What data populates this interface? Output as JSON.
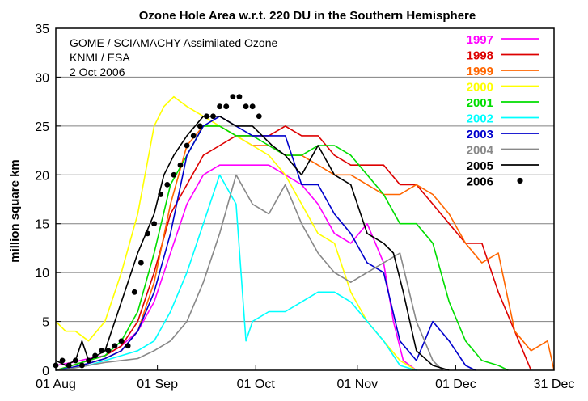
{
  "chart_data": {
    "type": "line",
    "title": "Ozone Hole Area w.r.t. 220 DU in the Southern Hemisphere",
    "xlabel": "",
    "ylabel": "million square km",
    "x_ticks": [
      "01 Aug",
      "01 Sep",
      "01 Oct",
      "01 Nov",
      "01 Dec",
      "31 Dec"
    ],
    "x_tick_days": [
      0,
      31,
      61,
      92,
      122,
      152
    ],
    "xlim": [
      0,
      152
    ],
    "ylim": [
      0,
      35
    ],
    "y_ticks": [
      0,
      5,
      10,
      15,
      20,
      25,
      30,
      35
    ],
    "grid": "horizontal",
    "annotations": [
      "GOME / SCIAMACHY Assimilated Ozone",
      "KNMI / ESA",
      "2 Oct 2006"
    ],
    "legend_position": "top-right",
    "series": [
      {
        "name": "1997",
        "color": "#ff00ff",
        "style": "line",
        "x": [
          0,
          5,
          10,
          15,
          20,
          25,
          30,
          35,
          40,
          45,
          50,
          55,
          60,
          65,
          70,
          75,
          80,
          85,
          90,
          95,
          100,
          103,
          106,
          110
        ],
        "y": [
          0.5,
          0.8,
          1.2,
          1.5,
          2.5,
          4,
          7,
          12,
          17,
          20,
          21,
          21,
          21,
          21,
          20,
          19,
          17,
          14,
          13,
          15,
          11,
          5,
          1,
          0
        ]
      },
      {
        "name": "1998",
        "color": "#dd0000",
        "style": "line",
        "x": [
          0,
          5,
          10,
          15,
          20,
          25,
          30,
          35,
          40,
          45,
          50,
          55,
          60,
          65,
          70,
          75,
          80,
          85,
          90,
          95,
          100,
          105,
          110,
          115,
          120,
          125,
          130,
          135,
          140,
          145
        ],
        "y": [
          0,
          0.5,
          1,
          1.5,
          2.5,
          5,
          10,
          16,
          19,
          22,
          23,
          24,
          24,
          24,
          25,
          24,
          24,
          22,
          21,
          21,
          21,
          19,
          19,
          17,
          15,
          13,
          13,
          8,
          4,
          0
        ]
      },
      {
        "name": "1999",
        "color": "#ff6600",
        "style": "line",
        "x": [
          0,
          5,
          10,
          15,
          20,
          25,
          30,
          35,
          40,
          45,
          50,
          55,
          60,
          65,
          70,
          75,
          80,
          85,
          90,
          95,
          100,
          105,
          110,
          115,
          120,
          125,
          130,
          135,
          140,
          145,
          150,
          152
        ],
        "y": [
          0,
          0.3,
          0.7,
          1.2,
          2,
          4,
          9,
          17,
          23,
          25,
          25,
          24,
          23,
          23,
          22,
          22,
          21,
          20,
          20,
          19,
          18,
          18,
          19,
          18,
          16,
          13,
          11,
          12,
          4,
          2,
          3,
          0
        ]
      },
      {
        "name": "2000",
        "color": "#ffff00",
        "style": "line",
        "x": [
          0,
          3,
          6,
          10,
          15,
          20,
          25,
          30,
          33,
          36,
          40,
          45,
          50,
          55,
          60,
          65,
          70,
          75,
          80,
          85,
          90,
          95,
          100,
          105,
          110
        ],
        "y": [
          5,
          4,
          4,
          3,
          5,
          10,
          16,
          25,
          27,
          28,
          27,
          26,
          25,
          24,
          23,
          22,
          20,
          17,
          14,
          13,
          8,
          5,
          3,
          1,
          0
        ]
      },
      {
        "name": "2001",
        "color": "#00dd00",
        "style": "line",
        "x": [
          0,
          5,
          10,
          15,
          20,
          25,
          30,
          35,
          40,
          45,
          50,
          55,
          60,
          65,
          70,
          75,
          80,
          85,
          90,
          95,
          100,
          105,
          110,
          115,
          120,
          125,
          130,
          135,
          138
        ],
        "y": [
          0,
          0.5,
          1,
          1.5,
          3,
          6,
          12,
          19,
          22,
          25,
          25,
          24,
          24,
          23,
          22,
          22,
          23,
          23,
          22,
          20,
          18,
          15,
          15,
          13,
          7,
          3,
          1,
          0.5,
          0
        ]
      },
      {
        "name": "2002",
        "color": "#00ffff",
        "style": "line",
        "x": [
          0,
          5,
          10,
          15,
          20,
          25,
          30,
          35,
          40,
          45,
          50,
          55,
          58,
          60,
          65,
          70,
          75,
          80,
          85,
          90,
          95,
          100,
          105,
          110
        ],
        "y": [
          0,
          0.3,
          0.5,
          1,
          1.5,
          2,
          3,
          6,
          10,
          15,
          20,
          17,
          3,
          5,
          6,
          6,
          7,
          8,
          8,
          7,
          5,
          3,
          0.5,
          0
        ]
      },
      {
        "name": "2003",
        "color": "#0000cc",
        "style": "line",
        "x": [
          0,
          5,
          10,
          15,
          20,
          25,
          30,
          35,
          40,
          45,
          50,
          55,
          60,
          65,
          70,
          75,
          80,
          85,
          90,
          95,
          100,
          105,
          110,
          115,
          120,
          125,
          128
        ],
        "y": [
          0,
          0.3,
          0.7,
          1.2,
          2,
          4,
          8,
          14,
          22,
          25,
          26,
          25,
          24,
          24,
          24,
          19,
          19,
          16,
          14,
          11,
          10,
          3,
          1,
          5,
          3,
          0.5,
          0
        ]
      },
      {
        "name": "2004",
        "color": "#888888",
        "style": "line",
        "x": [
          0,
          5,
          10,
          15,
          20,
          25,
          30,
          35,
          40,
          45,
          50,
          55,
          60,
          65,
          70,
          75,
          80,
          85,
          90,
          95,
          100,
          105,
          110,
          115,
          118
        ],
        "y": [
          0,
          0.2,
          0.5,
          0.8,
          1,
          1.2,
          2,
          3,
          5,
          9,
          14,
          20,
          17,
          16,
          19,
          15,
          12,
          10,
          9,
          10,
          11,
          12,
          5,
          1,
          0
        ]
      },
      {
        "name": "2005",
        "color": "#000000",
        "style": "line",
        "x": [
          0,
          3,
          6,
          8,
          10,
          15,
          20,
          25,
          30,
          33,
          36,
          40,
          45,
          50,
          55,
          60,
          63,
          66,
          70,
          75,
          80,
          85,
          90,
          95,
          100,
          103,
          106,
          110,
          115,
          120
        ],
        "y": [
          1,
          0.5,
          1,
          3,
          1,
          2,
          7,
          12,
          16,
          20,
          22,
          24,
          26,
          26,
          25,
          25,
          24,
          23,
          22,
          20,
          23,
          20,
          19,
          14,
          13,
          12,
          8,
          2,
          0.5,
          0
        ]
      },
      {
        "name": "2006",
        "color": "#000000",
        "style": "dots",
        "x": [
          0,
          2,
          4,
          6,
          8,
          10,
          12,
          14,
          16,
          18,
          20,
          22,
          24,
          26,
          28,
          30,
          32,
          34,
          36,
          38,
          40,
          42,
          44,
          46,
          48,
          50,
          52,
          54,
          56,
          58,
          60,
          62
        ],
        "y": [
          0.5,
          1,
          0.5,
          1,
          0.5,
          1,
          1.5,
          2,
          2,
          2.5,
          3,
          2.5,
          8,
          11,
          14,
          15,
          18,
          19,
          20,
          21,
          23,
          24,
          25,
          26,
          26,
          27,
          27,
          28,
          28,
          27,
          27,
          26
        ]
      }
    ]
  }
}
